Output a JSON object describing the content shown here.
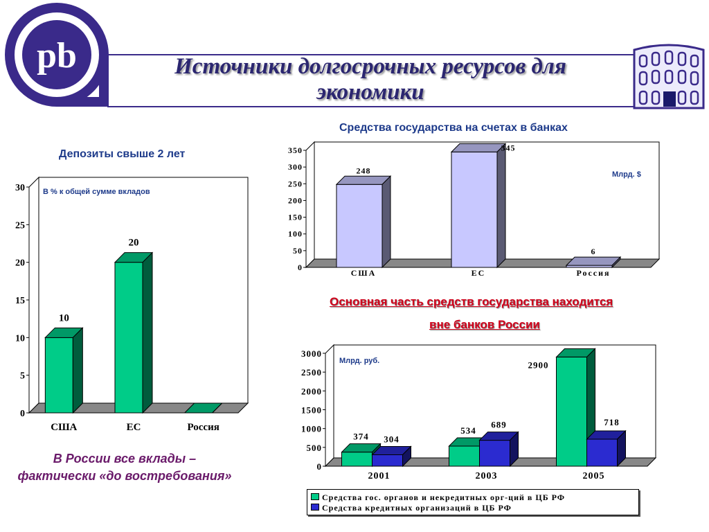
{
  "header": {
    "title_line1": "Источники долгосрочных ресурсов для",
    "title_line2": "экономики"
  },
  "colors": {
    "green": "#00cc88",
    "blue": "#2b2bd0",
    "lavender": "#c8c8ff",
    "brand": "#3a2a8a"
  },
  "icons": {
    "logo": "pb-logo-icon",
    "building": "bank-building-icon"
  },
  "notes": {
    "red_line1": "Основная часть средств государства находится ",
    "red_line2": " вне банков России",
    "russia_line1": "В России все вклады –",
    "russia_line2": "фактически «до востребования»"
  },
  "chart_data": [
    {
      "type": "bar",
      "title": "Депозиты  свыше 2 лет",
      "annotation": "В % к общей сумме вкладов",
      "categories": [
        "США",
        "ЕС",
        "Россия"
      ],
      "values": [
        10,
        20,
        0
      ],
      "data_labels": [
        "10",
        "20",
        ""
      ],
      "yticks": [
        "0",
        "5",
        "10",
        "15",
        "20",
        "25",
        "30"
      ],
      "ylim": [
        0,
        30
      ],
      "legend": "none"
    },
    {
      "type": "bar",
      "title": "Средства государства на счетах в банках",
      "annotation": "Млрд. $",
      "categories": [
        "США",
        "ЕС",
        "Россия"
      ],
      "values": [
        248,
        345,
        6
      ],
      "data_labels": [
        "248",
        "345",
        "6"
      ],
      "yticks": [
        "0",
        "50",
        "100",
        "150",
        "200",
        "250",
        "300",
        "350"
      ],
      "ylim": [
        0,
        350
      ],
      "legend": "none"
    },
    {
      "type": "bar",
      "annotation": "Млрд. руб.",
      "categories": [
        "2001",
        "2003",
        "2005"
      ],
      "series": [
        {
          "name": "Средства гос. органов и некредитных орг-ций в ЦБ РФ",
          "values": [
            374,
            534,
            2900
          ],
          "data_labels": [
            "374",
            "534",
            "2900"
          ]
        },
        {
          "name": "Средства кредитных организаций в ЦБ РФ",
          "values": [
            304,
            689,
            718
          ],
          "data_labels": [
            "304",
            "689",
            "718"
          ]
        }
      ],
      "yticks": [
        "0",
        "500",
        "1000",
        "1500",
        "2000",
        "2500",
        "3000"
      ],
      "ylim": [
        0,
        3000
      ],
      "legend": "bottom"
    }
  ]
}
